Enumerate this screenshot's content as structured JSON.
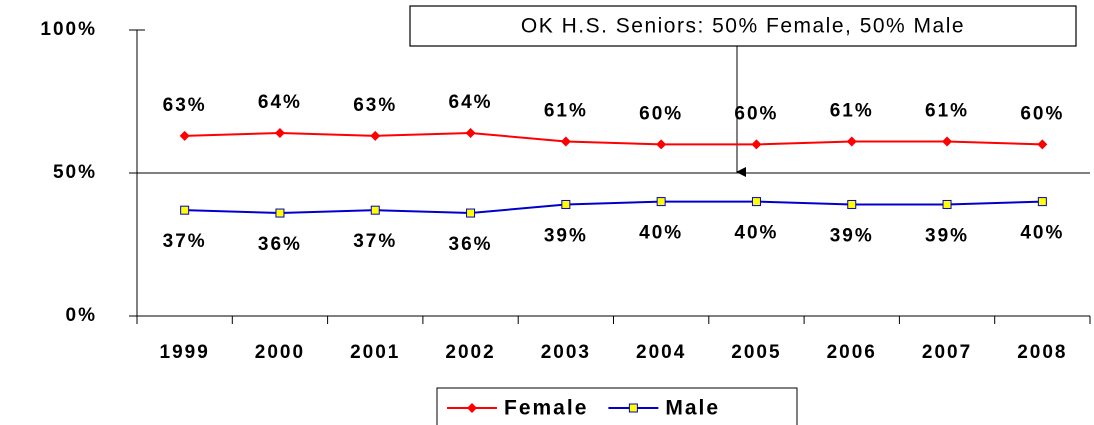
{
  "chart_data": {
    "type": "line",
    "categories": [
      "1999",
      "2000",
      "2001",
      "2002",
      "2003",
      "2004",
      "2005",
      "2006",
      "2007",
      "2008"
    ],
    "series": [
      {
        "name": "Female",
        "color": "#ff0000",
        "marker": "diamond",
        "values": [
          63,
          64,
          63,
          64,
          61,
          60,
          60,
          61,
          61,
          60
        ],
        "value_labels": [
          "63%",
          "64%",
          "63%",
          "64%",
          "61%",
          "60%",
          "60%",
          "61%",
          "61%",
          "60%"
        ],
        "label_position": "above"
      },
      {
        "name": "Male",
        "color": "#0000cc",
        "marker": "square",
        "marker_fill": "#ffff00",
        "values": [
          37,
          36,
          37,
          36,
          39,
          40,
          40,
          39,
          39,
          40
        ],
        "value_labels": [
          "37%",
          "36%",
          "37%",
          "36%",
          "39%",
          "40%",
          "40%",
          "39%",
          "39%",
          "40%"
        ],
        "label_position": "below"
      }
    ],
    "ylim": [
      0,
      100
    ],
    "yticks": [
      {
        "value": 0,
        "label": "0%"
      },
      {
        "value": 50,
        "label": "50%"
      },
      {
        "value": 100,
        "label": "100%"
      }
    ],
    "annotation": {
      "text": "OK H.S. Seniors: 50% Female, 50% Male",
      "y": 50
    },
    "legend": "bottom"
  }
}
